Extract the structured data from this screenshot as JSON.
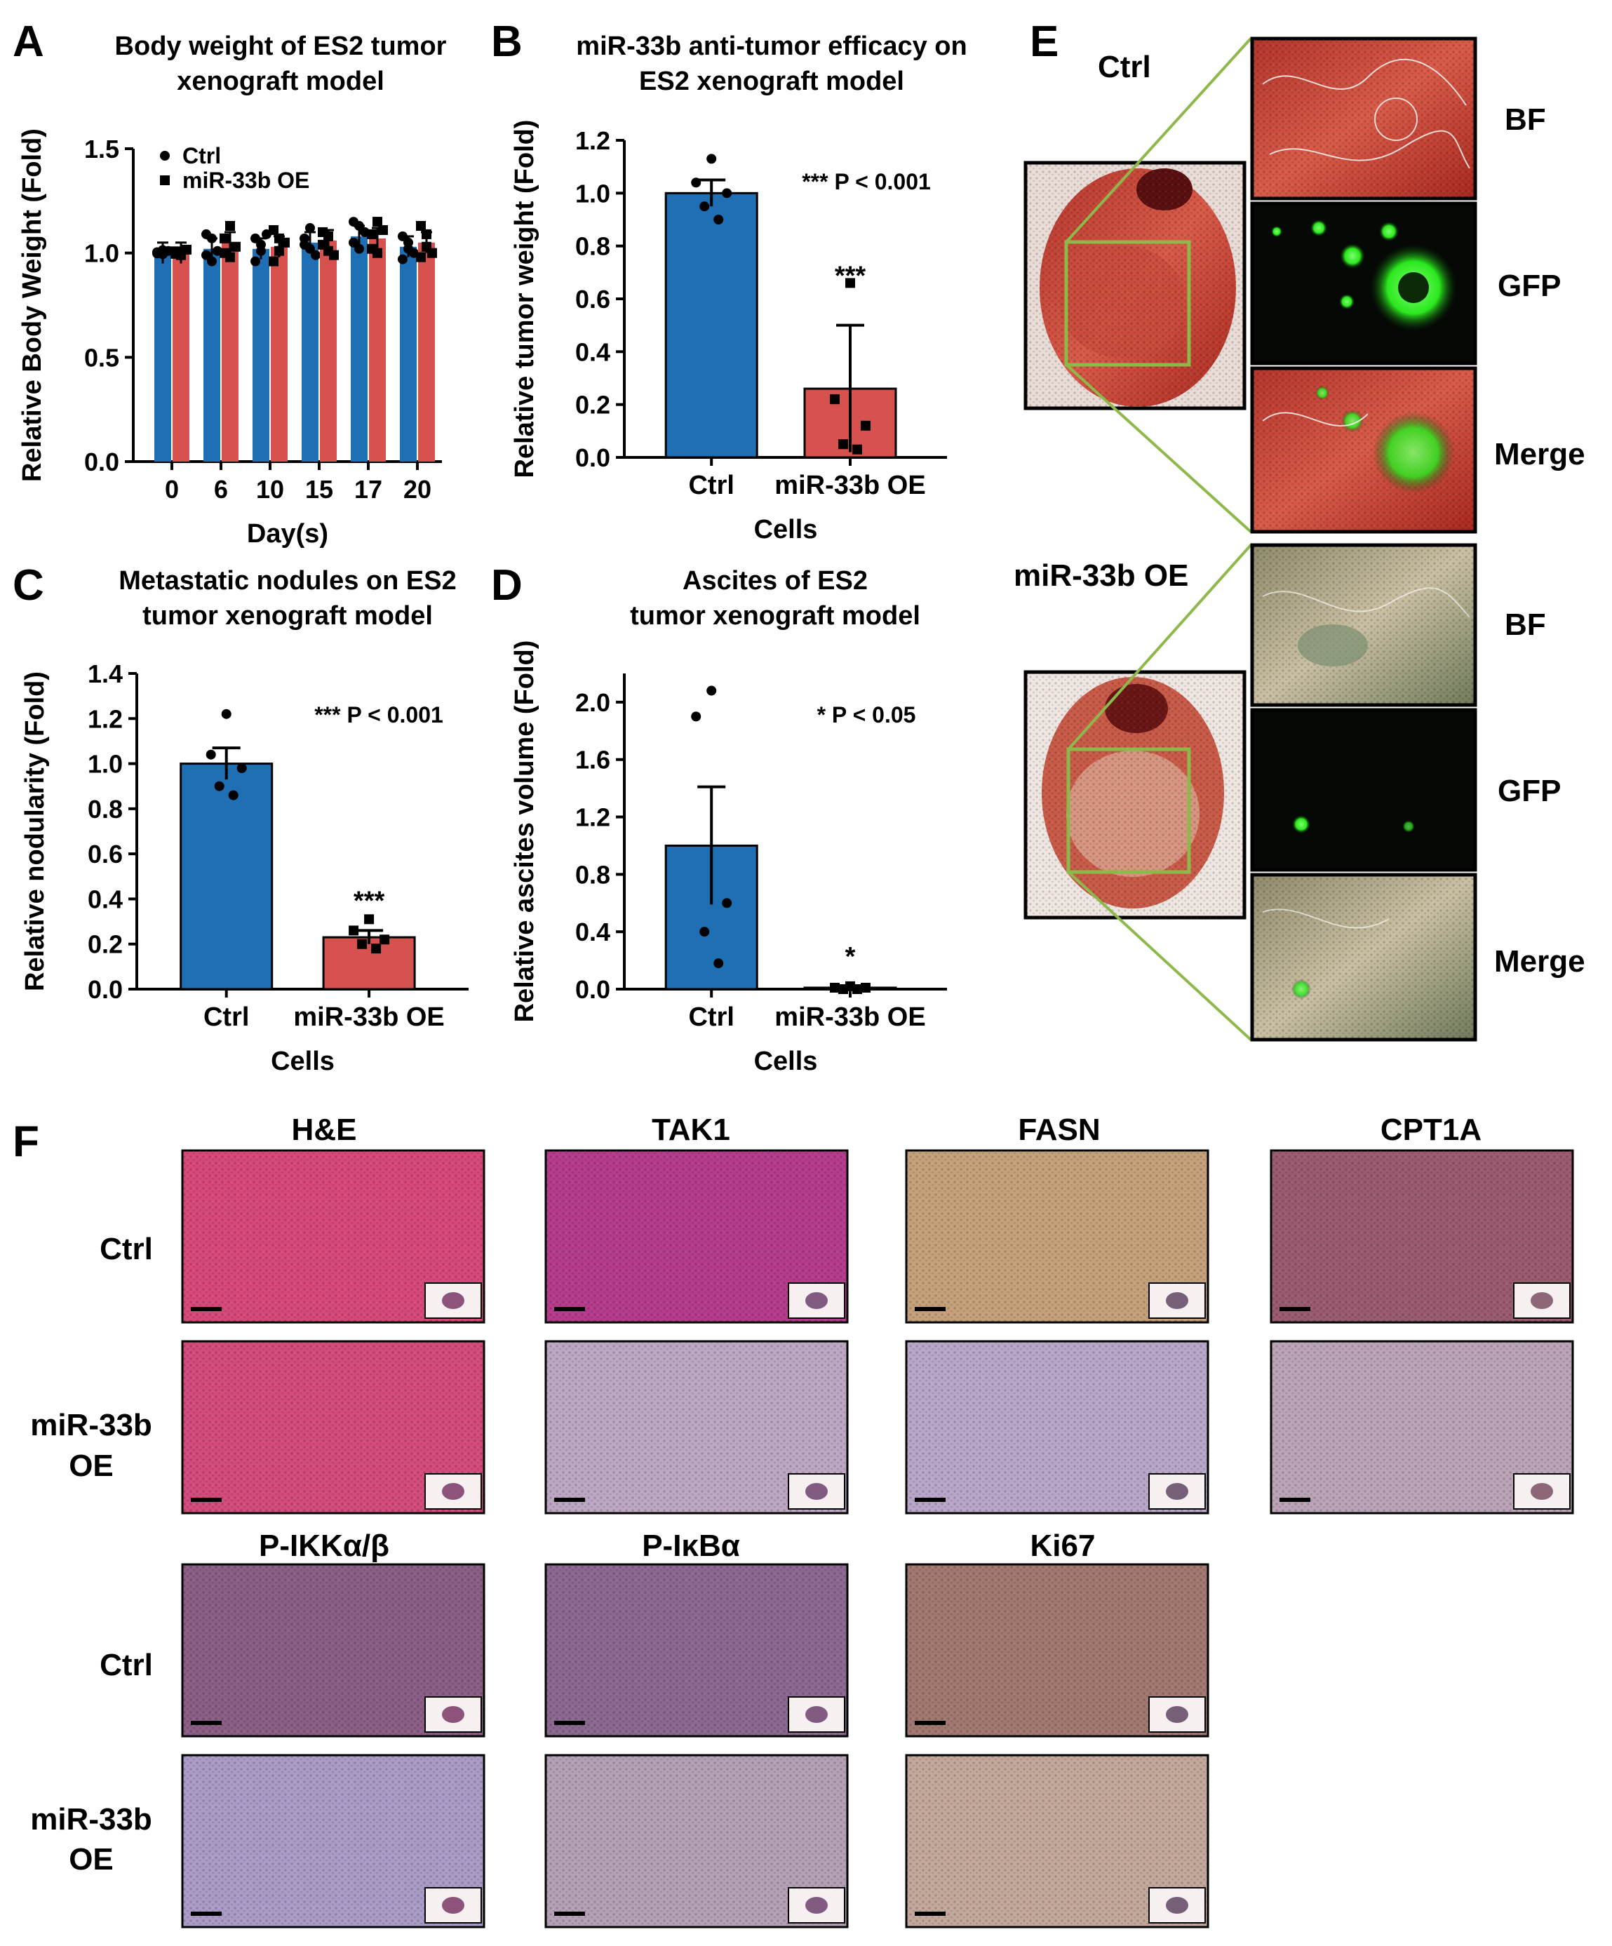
{
  "colors": {
    "ctrl": "#1F6FB4",
    "oe": "#D7524F",
    "frame": "#000000",
    "zoom_line": "#8DB84A"
  },
  "panels": {
    "A": {
      "letter": "A"
    },
    "B": {
      "letter": "B"
    },
    "C": {
      "letter": "C"
    },
    "D": {
      "letter": "D"
    },
    "E": {
      "letter": "E"
    },
    "F": {
      "letter": "F"
    }
  },
  "chart_data": [
    {
      "id": "A",
      "type": "bar",
      "title": [
        "Body weight of ES2 tumor",
        "xenograft model"
      ],
      "xlabel": "Day(s)",
      "ylabel": "Relative Body Weight (Fold)",
      "ylim": [
        0,
        1.5
      ],
      "yticks": [
        "0.0",
        "0.5",
        "1.0",
        "1.5"
      ],
      "categories": [
        "0",
        "6",
        "10",
        "15",
        "17",
        "20"
      ],
      "legend": [
        "Ctrl",
        "miR-33b OE"
      ],
      "series": [
        {
          "name": "Ctrl",
          "values": [
            1.0,
            1.02,
            1.02,
            1.05,
            1.08,
            1.03
          ]
        },
        {
          "name": "miR-33b OE",
          "values": [
            1.0,
            1.05,
            1.03,
            1.06,
            1.07,
            1.05
          ]
        }
      ]
    },
    {
      "id": "B",
      "type": "bar",
      "title": [
        "miR-33b anti-tumor efficacy on",
        "ES2 xenograft model"
      ],
      "xlabel": "Cells",
      "ylabel": "Relative tumor weight (Fold)",
      "ylim": [
        0,
        1.2
      ],
      "yticks": [
        "0.0",
        "0.2",
        "0.4",
        "0.6",
        "0.8",
        "1.0",
        "1.2"
      ],
      "categories": [
        "Ctrl",
        "miR-33b OE"
      ],
      "values": [
        1.0,
        0.26
      ],
      "errors": [
        0.05,
        0.24
      ],
      "points": [
        [
          1.13,
          1.04,
          1.0,
          0.95,
          0.9
        ],
        [
          0.66,
          0.22,
          0.12,
          0.05,
          0.03
        ]
      ],
      "annotations": {
        "stat": "*** P < 0.001",
        "stars": "***"
      }
    },
    {
      "id": "C",
      "type": "bar",
      "title": [
        "Metastatic nodules on ES2",
        "tumor xenograft model"
      ],
      "xlabel": "Cells",
      "ylabel": "Relative nodularity (Fold)",
      "ylim": [
        0,
        1.4
      ],
      "yticks": [
        "0.0",
        "0.2",
        "0.4",
        "0.6",
        "0.8",
        "1.0",
        "1.2",
        "1.4"
      ],
      "categories": [
        "Ctrl",
        "miR-33b OE"
      ],
      "values": [
        1.0,
        0.23
      ],
      "errors": [
        0.07,
        0.03
      ],
      "points": [
        [
          1.22,
          1.04,
          0.98,
          0.9,
          0.86
        ],
        [
          0.31,
          0.26,
          0.22,
          0.2,
          0.18
        ]
      ],
      "annotations": {
        "stat": "*** P < 0.001",
        "stars": "***"
      }
    },
    {
      "id": "D",
      "type": "bar",
      "title": [
        "Ascites of ES2",
        "tumor xenograft model"
      ],
      "xlabel": "Cells",
      "ylabel": "Relative ascites volume (Fold)",
      "ylim": [
        0,
        2.2
      ],
      "yticks": [
        "0.0",
        "0.4",
        "0.8",
        "1.2",
        "1.6",
        "2.0"
      ],
      "categories": [
        "Ctrl",
        "miR-33b OE"
      ],
      "values": [
        1.0,
        0.01
      ],
      "errors": [
        0.41,
        0.01
      ],
      "points": [
        [
          2.08,
          1.9,
          0.6,
          0.4,
          0.18
        ],
        [
          0.02,
          0.01,
          0.01,
          0.0,
          0.0
        ]
      ],
      "annotations": {
        "stat": "* P < 0.05",
        "stars": "*"
      }
    }
  ],
  "panel_e": {
    "groups": [
      {
        "label": "Ctrl",
        "rows": [
          "BF",
          "GFP",
          "Merge"
        ]
      },
      {
        "label": "miR-33b OE",
        "rows": [
          "BF",
          "GFP",
          "Merge"
        ]
      }
    ]
  },
  "panel_f": {
    "columns_top": [
      "H&E",
      "TAK1",
      "FASN",
      "CPT1A"
    ],
    "columns_bottom": [
      "P-IKKα/β",
      "P-IκBα",
      "Ki67"
    ],
    "row_labels": {
      "ctrl": "Ctrl",
      "oe_line1": "miR-33b",
      "oe_line2": "OE"
    }
  }
}
